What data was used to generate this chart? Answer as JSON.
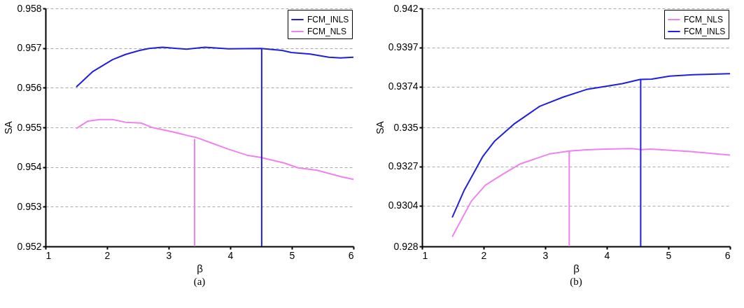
{
  "chart_data": [
    {
      "type": "line",
      "title": "(a)",
      "xlabel": "β",
      "ylabel": "SA",
      "xlim": [
        1,
        6
      ],
      "xticks": [
        1,
        2,
        3,
        4,
        5,
        6
      ],
      "ylim": [
        0.952,
        0.958
      ],
      "yticks": [
        0.952,
        0.953,
        0.954,
        0.955,
        0.956,
        0.957,
        0.958
      ],
      "grid": "y",
      "legend": "top right",
      "marker": "none",
      "line_style": "solid",
      "series": [
        {
          "name": "FCM_INLS",
          "color": "#1f1fe0",
          "x": [
            1.5,
            1.77,
            2.09,
            2.3,
            2.53,
            2.68,
            2.9,
            3.29,
            3.59,
            3.97,
            4.5,
            4.84,
            4.99,
            5.3,
            5.6,
            5.79,
            6.0
          ],
          "values": [
            0.95602,
            0.95641,
            0.95671,
            0.95684,
            0.95694,
            0.95699,
            0.95702,
            0.95697,
            0.95702,
            0.95698,
            0.95699,
            0.95694,
            0.95689,
            0.95685,
            0.95677,
            0.95675,
            0.95677
          ]
        },
        {
          "name": "FCM_NLS",
          "color": "#ee82ee",
          "x": [
            1.5,
            1.69,
            1.88,
            2.09,
            2.3,
            2.55,
            2.75,
            3.06,
            3.32,
            3.44,
            3.67,
            3.97,
            4.27,
            4.5,
            4.88,
            5.1,
            5.41,
            5.79,
            6.0
          ],
          "values": [
            0.95497,
            0.95516,
            0.9552,
            0.9552,
            0.95513,
            0.95511,
            0.95499,
            0.95489,
            0.95479,
            0.95475,
            0.95462,
            0.95445,
            0.9543,
            0.95424,
            0.9541,
            0.95398,
            0.95392,
            0.95376,
            0.95369
          ]
        },
        {
          "type": "line",
          "color": "#ee82ee",
          "x": [
            3.42,
            3.42
          ],
          "values": [
            0.952,
            0.95471
          ]
        },
        {
          "type": "line",
          "color": "#1f1fe0",
          "x": [
            4.51,
            4.51
          ],
          "values": [
            0.952,
            0.95699
          ]
        }
      ]
    },
    {
      "type": "line",
      "title": "(b)",
      "xlabel": "β",
      "ylabel": "SA",
      "xlim": [
        1,
        6
      ],
      "xticks": [
        1,
        2,
        3,
        4,
        5,
        6
      ],
      "ylim": [
        0.928,
        0.942
      ],
      "yticks": [
        0.928,
        0.9304,
        0.9327,
        0.935,
        0.9374,
        0.9397,
        0.942
      ],
      "grid": "y",
      "legend": "top right",
      "marker": "none",
      "line_style": "solid",
      "series": [
        {
          "name": "FCM_NLS",
          "color": "#ee82ee",
          "x": [
            1.49,
            1.8,
            2.03,
            2.33,
            2.6,
            3.08,
            3.39,
            3.67,
            3.98,
            4.4,
            4.56,
            4.71,
            5.32,
            6.0
          ],
          "values": [
            0.92857,
            0.93066,
            0.93161,
            0.93229,
            0.93286,
            0.93345,
            0.93361,
            0.93368,
            0.93372,
            0.93375,
            0.93369,
            0.93372,
            0.93359,
            0.93337
          ]
        },
        {
          "name": "FCM_INLS",
          "color": "#1f1fe0",
          "x": [
            1.49,
            1.68,
            1.99,
            2.18,
            2.49,
            2.91,
            3.29,
            3.67,
            4.06,
            4.25,
            4.54,
            4.73,
            5.02,
            5.4,
            6.0
          ],
          "values": [
            0.9297,
            0.93127,
            0.93331,
            0.9342,
            0.93519,
            0.93624,
            0.93678,
            0.93723,
            0.93746,
            0.93757,
            0.93782,
            0.93784,
            0.93802,
            0.9381,
            0.93816
          ]
        },
        {
          "type": "line",
          "color": "#ee82ee",
          "x": [
            3.39,
            3.39
          ],
          "values": [
            0.928,
            0.93361
          ]
        },
        {
          "type": "line",
          "color": "#1f1fe0",
          "x": [
            4.55,
            4.55
          ],
          "values": [
            0.928,
            0.93782
          ]
        }
      ]
    }
  ]
}
